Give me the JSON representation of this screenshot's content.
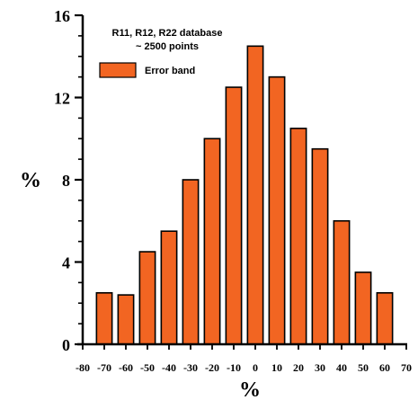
{
  "chart_data": {
    "type": "bar",
    "xlabel": "%",
    "ylabel": "%",
    "ylim": [
      0,
      16
    ],
    "xlim": [
      -80,
      70
    ],
    "yticks": [
      0,
      4,
      8,
      12,
      16
    ],
    "xticks": [
      -80,
      -70,
      -60,
      -50,
      -40,
      -30,
      -20,
      -10,
      0,
      10,
      20,
      30,
      40,
      50,
      60,
      70
    ],
    "x": [
      -70,
      -60,
      -50,
      -40,
      -30,
      -20,
      -10,
      0,
      10,
      20,
      30,
      40,
      50,
      60
    ],
    "values": [
      2.5,
      2.4,
      4.5,
      5.5,
      8.0,
      10.0,
      12.5,
      14.5,
      13.0,
      10.5,
      9.5,
      6.0,
      3.5,
      2.5
    ],
    "bar_color": "#f26522",
    "annotation_lines": [
      "R11, R12, R22 database",
      "~ 2500 points"
    ],
    "legend": [
      {
        "name": "Error band",
        "color": "#f26522"
      }
    ],
    "legend_position": "top-left",
    "grid": false
  }
}
